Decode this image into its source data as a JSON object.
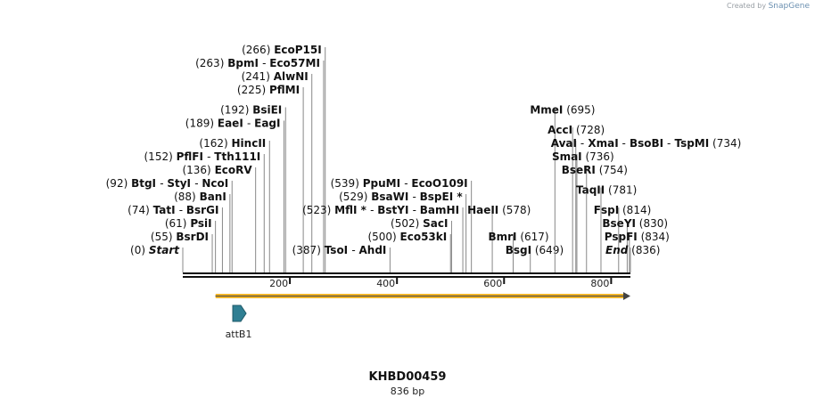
{
  "credit": {
    "prefix": "Created by",
    "brand": "SnapGene"
  },
  "sequence": {
    "name": "KHBD00459",
    "length_label": "836 bp",
    "length": 836
  },
  "axis_ticks": [
    {
      "pos": 200,
      "label": "200"
    },
    {
      "pos": 400,
      "label": "400"
    },
    {
      "pos": 600,
      "label": "600"
    },
    {
      "pos": 800,
      "label": "800"
    }
  ],
  "features": [
    {
      "name": "orf-arrow",
      "start": 61,
      "end": 836,
      "color": "#f0b429"
    },
    {
      "name": "attB1",
      "label": "attB1",
      "start": 65,
      "end": 90,
      "color": "#2f7f93"
    }
  ],
  "sites": [
    {
      "pos": 0,
      "pos_label": "(0)",
      "names": [
        "Start"
      ],
      "italic": true,
      "row": 0,
      "side": "left"
    },
    {
      "pos": 55,
      "pos_label": "(55)",
      "names": [
        "BsrDI"
      ],
      "row": 1,
      "side": "left"
    },
    {
      "pos": 61,
      "pos_label": "(61)",
      "names": [
        "PsiI"
      ],
      "row": 2,
      "side": "left"
    },
    {
      "pos": 74,
      "pos_label": "(74)",
      "names": [
        "TatI",
        "BsrGI"
      ],
      "row": 3,
      "side": "left"
    },
    {
      "pos": 88,
      "pos_label": "(88)",
      "names": [
        "BanI"
      ],
      "row": 4,
      "side": "left"
    },
    {
      "pos": 92,
      "pos_label": "(92)",
      "names": [
        "BtgI",
        "StyI",
        "NcoI"
      ],
      "row": 5,
      "side": "left"
    },
    {
      "pos": 136,
      "pos_label": "(136)",
      "names": [
        "EcoRV"
      ],
      "row": 6,
      "side": "left"
    },
    {
      "pos": 152,
      "pos_label": "(152)",
      "names": [
        "PflFI",
        "Tth111I"
      ],
      "row": 7,
      "side": "left"
    },
    {
      "pos": 162,
      "pos_label": "(162)",
      "names": [
        "HincII"
      ],
      "row": 8,
      "side": "left"
    },
    {
      "pos": 189,
      "pos_label": "(189)",
      "names": [
        "EaeI",
        "EagI"
      ],
      "row": 9.5,
      "side": "left"
    },
    {
      "pos": 192,
      "pos_label": "(192)",
      "names": [
        "BsiEI"
      ],
      "row": 10.5,
      "side": "left"
    },
    {
      "pos": 225,
      "pos_label": "(225)",
      "names": [
        "PflMI"
      ],
      "row": 12,
      "side": "left"
    },
    {
      "pos": 241,
      "pos_label": "(241)",
      "names": [
        "AlwNI"
      ],
      "row": 13,
      "side": "left"
    },
    {
      "pos": 263,
      "pos_label": "(263)",
      "names": [
        "BpmI",
        "Eco57MI"
      ],
      "row": 14,
      "side": "left"
    },
    {
      "pos": 266,
      "pos_label": "(266)",
      "names": [
        "EcoP15I"
      ],
      "row": 15,
      "side": "left"
    },
    {
      "pos": 387,
      "pos_label": "(387)",
      "names": [
        "TsoI",
        "AhdI"
      ],
      "row": 0,
      "side": "left"
    },
    {
      "pos": 500,
      "pos_label": "(500)",
      "names": [
        "Eco53kI"
      ],
      "row": 1,
      "side": "left"
    },
    {
      "pos": 502,
      "pos_label": "(502)",
      "names": [
        "SacI"
      ],
      "row": 2,
      "side": "left"
    },
    {
      "pos": 523,
      "pos_label": "(523)",
      "names": [
        "MflI *",
        "BstYI",
        "BamHI"
      ],
      "row": 3,
      "side": "left"
    },
    {
      "pos": 529,
      "pos_label": "(529)",
      "names": [
        "BsaWI",
        "BspEI *"
      ],
      "row": 4,
      "side": "left"
    },
    {
      "pos": 539,
      "pos_label": "(539)",
      "names": [
        "PpuMI",
        "EcoO109I"
      ],
      "row": 5,
      "side": "left"
    },
    {
      "pos": 578,
      "pos_label": "(578)",
      "names": [
        "HaeII"
      ],
      "row": 3,
      "side": "right"
    },
    {
      "pos": 617,
      "pos_label": "(617)",
      "names": [
        "BmrI"
      ],
      "row": 1,
      "side": "right"
    },
    {
      "pos": 649,
      "pos_label": "(649)",
      "names": [
        "BsgI"
      ],
      "row": 0,
      "side": "right"
    },
    {
      "pos": 695,
      "pos_label": "(695)",
      "names": [
        "MmeI"
      ],
      "row": 10.5,
      "side": "right"
    },
    {
      "pos": 728,
      "pos_label": "(728)",
      "names": [
        "AccI"
      ],
      "row": 9,
      "side": "right"
    },
    {
      "pos": 734,
      "pos_label": "(734)",
      "names": [
        "AvaI",
        "XmaI",
        "BsoBI",
        "TspMI"
      ],
      "row": 8,
      "side": "right"
    },
    {
      "pos": 736,
      "pos_label": "(736)",
      "names": [
        "SmaI"
      ],
      "row": 7,
      "side": "right"
    },
    {
      "pos": 754,
      "pos_label": "(754)",
      "names": [
        "BseRI"
      ],
      "row": 6,
      "side": "right"
    },
    {
      "pos": 781,
      "pos_label": "(781)",
      "names": [
        "TaqII"
      ],
      "row": 4.5,
      "side": "right"
    },
    {
      "pos": 814,
      "pos_label": "(814)",
      "names": [
        "FspI"
      ],
      "row": 3,
      "side": "right"
    },
    {
      "pos": 830,
      "pos_label": "(830)",
      "names": [
        "BseYI"
      ],
      "row": 2,
      "side": "right"
    },
    {
      "pos": 834,
      "pos_label": "(834)",
      "names": [
        "PspFI"
      ],
      "row": 1,
      "side": "right"
    },
    {
      "pos": 836,
      "pos_label": "(836)",
      "names": [
        "End"
      ],
      "italic": true,
      "row": 0,
      "side": "right"
    }
  ]
}
